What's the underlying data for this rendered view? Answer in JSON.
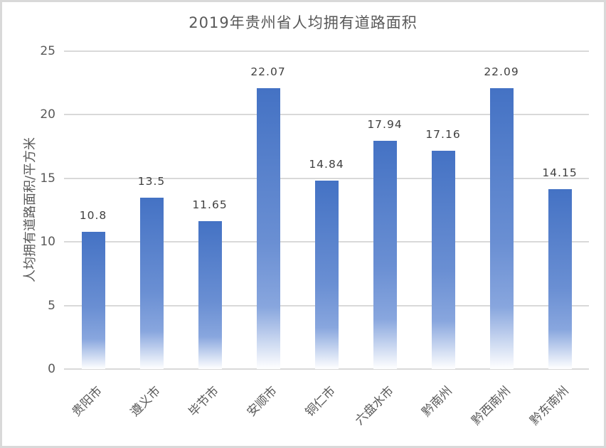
{
  "chart_data": {
    "type": "bar",
    "title": "2019年贵州省人均拥有道路面积",
    "xlabel": "",
    "ylabel": "人均拥有道路面积/平方米",
    "ylim": [
      0,
      25
    ],
    "yticks": [
      0,
      5,
      10,
      15,
      20,
      25
    ],
    "grid": true,
    "legend": null,
    "categories": [
      "贵阳市",
      "遵义市",
      "毕节市",
      "安顺市",
      "铜仁市",
      "六盘水市",
      "黔南州",
      "黔西南州",
      "黔东南州"
    ],
    "values": [
      10.8,
      13.5,
      11.65,
      22.07,
      14.84,
      17.94,
      17.16,
      22.09,
      14.15
    ],
    "value_labels": [
      "10.8",
      "13.5",
      "11.65",
      "22.07",
      "14.84",
      "17.94",
      "17.16",
      "22.09",
      "14.15"
    ],
    "bar_color": "#4472c4"
  },
  "labels": {
    "title": "2019年贵州省人均拥有道路面积",
    "ylabel": "人均拥有道路面积/平方米",
    "yticks": [
      "0",
      "5",
      "10",
      "15",
      "20",
      "25"
    ],
    "categories": [
      "贵阳市",
      "遵义市",
      "毕节市",
      "安顺市",
      "铜仁市",
      "六盘水市",
      "黔南州",
      "黔西南州",
      "黔东南州"
    ],
    "values": [
      "10.8",
      "13.5",
      "11.65",
      "22.07",
      "14.84",
      "17.94",
      "17.16",
      "22.09",
      "14.15"
    ]
  }
}
